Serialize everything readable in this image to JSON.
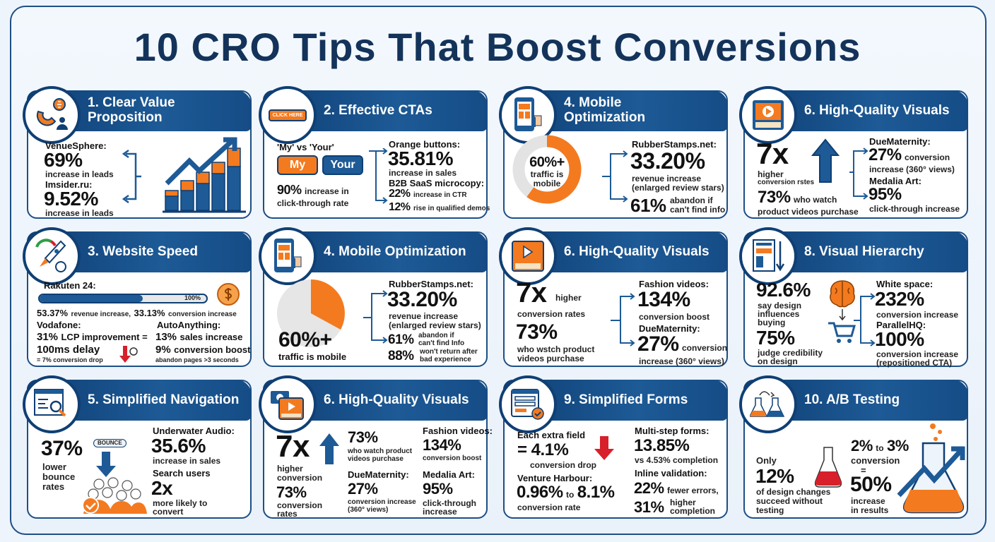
{
  "title": "10 CRO Tips That Boost Conversions",
  "colors": {
    "navy": "#0f3f74",
    "blue": "#1d5a96",
    "orange": "#f47a1f",
    "red": "#d7202a",
    "text": "#111111"
  },
  "cards": [
    {
      "title": "1. Clear Value Proposition",
      "icon": "magnet-dollar-icon",
      "a_label": "VenueSphere:",
      "a_value": "69%",
      "a_desc": "increase in leads",
      "b_label": "Imsider.ru:",
      "b_value": "9.52%",
      "b_desc": "increase in leads"
    },
    {
      "title": "2. Effective CTAs",
      "icon": "click-here-button-icon",
      "icon_text": "CLICK HERE",
      "compare_label": "'My' vs 'Your'",
      "my": "My",
      "your": "Your",
      "ctr_value": "90%",
      "ctr_desc1": "increase in",
      "ctr_desc2": "click-through rate",
      "a_label": "Orange buttons:",
      "a_value": "35.81%",
      "a_desc": "increase in sales",
      "b_label": "B2B SaaS microcopy:",
      "b_value": "22%",
      "b_desc": "increase in CTR",
      "c_value": "12%",
      "c_desc": "rise in qualified demos"
    },
    {
      "title": "4. Mobile Optimization",
      "icon": "mobile-thumbs-up-icon",
      "donut_value": "60%+",
      "donut_percent": 60,
      "donut_desc1": "traffic is",
      "donut_desc2": "mobile",
      "a_label": "RubberStamps.net:",
      "a_value": "33.20%",
      "a_desc1": "revenue increase",
      "a_desc2": "(enlarged review stars)",
      "b_value": "61%",
      "b_desc1": "abandon if",
      "b_desc2": "can't find info"
    },
    {
      "title": "6. High-Quality Visuals",
      "icon": "video-player-icon",
      "x_value": "7x",
      "x_desc1": "higher",
      "x_desc2": "conversion rstes",
      "p_value": "73%",
      "p_desc1": "who watch",
      "p_desc2": "product videos purchase",
      "a_label": "DueMaternity:",
      "a_value": "27%",
      "a_desc1": "conversion",
      "a_desc2": "increase (360° views)",
      "b_label": "Medalia Art:",
      "b_value": "95%",
      "b_desc": "click-through increase"
    },
    {
      "title": "3. Website Speed",
      "icon": "rocket-speed-icon",
      "r_label": "Rakuten 24:",
      "progress_label": "100%",
      "progress_fill": 0.62,
      "r_v1": "53.37%",
      "r_d1": "revenue increase,",
      "r_v2": "33.13%",
      "r_d2": "conversion increase",
      "v_label": "Vodafone:",
      "v_value": "31%",
      "v_desc": "LCP improvement =",
      "d_value": "100ms delay",
      "d_desc": "= 7% conversion drop",
      "aa_label": "AutoAnything:",
      "aa_value": "13%",
      "aa_desc": "sales increase",
      "c_value": "9%",
      "c_desc": "conversion boost",
      "c_note": "abandon pages >3 seconds"
    },
    {
      "title": "4. Mobile Optimization",
      "icon": "mobile-thumbs-up-icon",
      "pie_value": "60%+",
      "pie_desc": "traffic is mobile",
      "a_label": "RubberStamps.net:",
      "a_value": "33.20%",
      "a_desc1": "revenue increase",
      "a_desc2": "(enlarged review stars)",
      "b_value": "61%",
      "b_desc1": "abandon if",
      "b_desc2": "can't find Info",
      "c_value": "88%",
      "c_desc1": "won't return after",
      "c_desc2": "bad experience"
    },
    {
      "title": "6. High-Quality Visuals",
      "icon": "video-player-icon",
      "x_value": "7x",
      "x_desc1": "higher",
      "x_desc2": "conversion rates",
      "p_value": "73%",
      "p_desc1": "who wstch product",
      "p_desc2": "videos purchase",
      "a_label": "Fashion videos:",
      "a_value": "134%",
      "a_desc": "conversion boost",
      "b_label": "DueMaternity:",
      "b_value": "27%",
      "b_desc1": "conversion",
      "b_desc2": "increase (360° views)"
    },
    {
      "title": "8. Visual Hierarchy",
      "icon": "layout-down-arrow-icon",
      "a_value": "92.6%",
      "a_desc1": "say design",
      "a_desc2": "influences",
      "a_desc3": "buying",
      "b_value": "75%",
      "b_desc1": "judge credibility",
      "b_desc2": "on design",
      "c_label": "White space:",
      "c_value": "232%",
      "c_desc": "conversion increase",
      "d_label": "ParallelHQ:",
      "d_value": "100%",
      "d_desc1": "conversion increase",
      "d_desc2": "(repositioned CTA)"
    },
    {
      "title": "5. Simplified Navigation",
      "icon": "browser-search-icon",
      "a_value": "37%",
      "a_desc1": "lower",
      "a_desc2": "bounce",
      "a_desc3": "rates",
      "bounce": "BOUNCE",
      "b_label": "Underwater Audio:",
      "b_value": "35.6%",
      "b_desc": "increase in sales",
      "c_label": "Search users",
      "c_value": "2x",
      "c_desc1": "more likely to",
      "c_desc2": "convert"
    },
    {
      "title": "6. High-Quality Visuals",
      "icon": "camera-video-icon",
      "x_value": "7x",
      "x_desc1": "higher",
      "x_desc2": "conversion",
      "r_value": "73%",
      "r_desc1": "conversion",
      "r_desc2": "rates",
      "p_value": "73%",
      "p_desc1": "who watch product",
      "p_desc2": "videos purchase",
      "d_label": "DueMaternity:",
      "d_value": "27%",
      "d_desc1": "conversion increase",
      "d_desc2": "(360° views)",
      "f_label": "Fashion videos:",
      "f_value": "134%",
      "f_desc": "conversion boost",
      "m_label": "Medalia Art:",
      "m_value": "95%",
      "m_desc1": "click-through",
      "m_desc2": "increase"
    },
    {
      "title": "9. Simplified Forms",
      "icon": "form-check-icon",
      "a_label": "Each extra field",
      "a_value": "= 4.1%",
      "a_desc": "conversion drop",
      "b_label": "Venture Harbour:",
      "b_v1": "0.96%",
      "b_to": "to",
      "b_v2": "8.1%",
      "b_desc": "conversion rate",
      "c_label": "Multi-step forms:",
      "c_value": "13.85%",
      "c_desc": "vs 4.53% completion",
      "d_label": "Inline validation:",
      "d_v1": "22%",
      "d_d1": "fewer errors,",
      "d_v2": "31%",
      "d_d2a": "higher",
      "d_d2b": "completion"
    },
    {
      "title": "10. A/B Testing",
      "icon": "flasks-icon",
      "a_label": "Only",
      "a_value": "12%",
      "a_desc1": "of design changes",
      "a_desc2": "succeed without",
      "a_desc3": "testing",
      "b_v1": "2%",
      "b_to": "to",
      "b_v2": "3%",
      "b_desc": "conversion",
      "b_eq": "=",
      "c_value": "50%",
      "c_desc1": "increase",
      "c_desc2": "in results"
    }
  ]
}
